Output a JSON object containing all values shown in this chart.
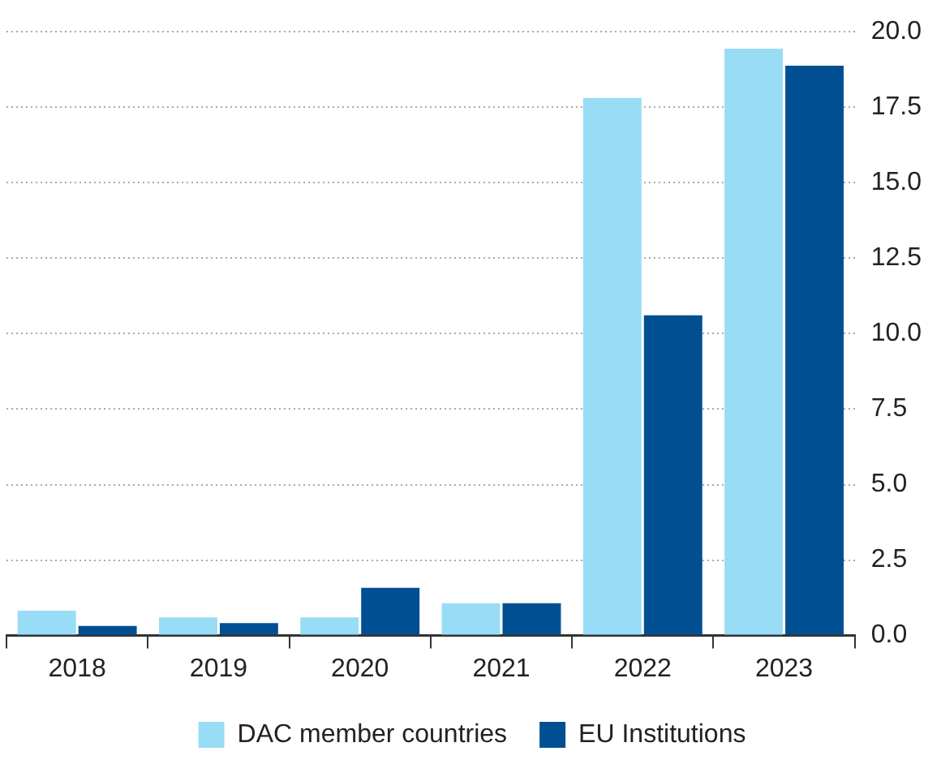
{
  "chart_data": {
    "type": "bar",
    "categories": [
      "2018",
      "2019",
      "2020",
      "2021",
      "2022",
      "2023"
    ],
    "series": [
      {
        "name": "DAC member countries",
        "color": "#99dcf6",
        "values": [
          0.82,
          0.6,
          0.6,
          1.07,
          17.81,
          19.44
        ]
      },
      {
        "name": "EU Institutions",
        "color": "#004f93",
        "values": [
          0.32,
          0.41,
          1.58,
          1.07,
          10.61,
          18.88
        ]
      }
    ],
    "ylim": [
      0,
      20
    ],
    "yticks": [
      {
        "value": 0,
        "label": "0.0"
      },
      2.5,
      {
        "value": 5,
        "label": "5.0"
      },
      7.5,
      {
        "value": 10,
        "label": "10.0"
      },
      12.5,
      {
        "value": 15,
        "label": "15.0"
      },
      17.5,
      {
        "value": 20,
        "label": "20.0"
      }
    ],
    "grid": "y",
    "legend": "bottom"
  }
}
